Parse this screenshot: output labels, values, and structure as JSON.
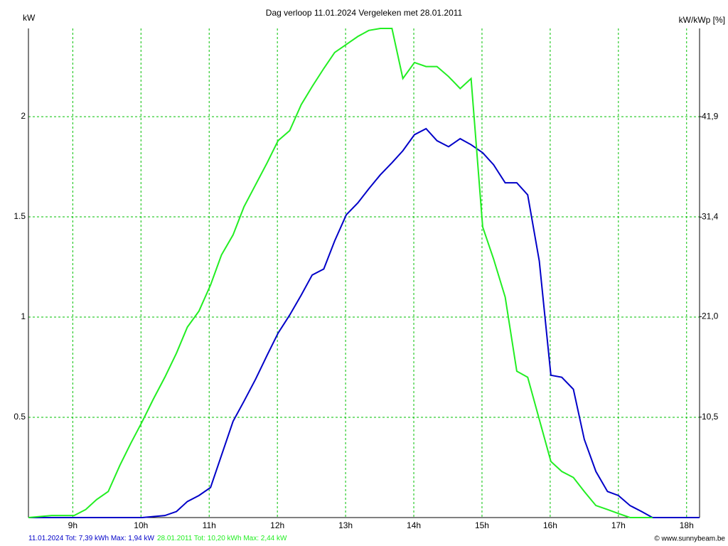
{
  "chart_data": {
    "type": "line",
    "title": "Dag  verloop 11.01.2024   Vergeleken met 28.01.2011",
    "y_label": "kW",
    "y2_label": "kW/kWp [%]",
    "footer": "© www.sunnybeam.be",
    "xlim": [
      8.35,
      18.19
    ],
    "xticks": [
      {
        "value": 9,
        "label": "9h"
      },
      {
        "value": 10,
        "label": "10h"
      },
      {
        "value": 11,
        "label": "11h"
      },
      {
        "value": 12,
        "label": "12h"
      },
      {
        "value": 13,
        "label": "13h"
      },
      {
        "value": 14,
        "label": "14h"
      },
      {
        "value": 15,
        "label": "15h"
      },
      {
        "value": 16,
        "label": "16h"
      },
      {
        "value": 17,
        "label": "17h"
      },
      {
        "value": 18,
        "label": "18h"
      }
    ],
    "ylim": [
      0,
      2.44
    ],
    "yticks": [
      0.5,
      1,
      1.5,
      2
    ],
    "y2lim": [
      0,
      51.12
    ],
    "y2ticks": [
      {
        "value": 10.5,
        "label": "10,5"
      },
      {
        "value": 21.0,
        "label": "21,0"
      },
      {
        "value": 31.4,
        "label": "31,4"
      },
      {
        "value": 41.9,
        "label": "41,9"
      }
    ],
    "grid": true,
    "grid_color": "#00c000",
    "series": [
      {
        "name": "11.01.2024 Tot: 7,39 kWh Max: 1,94 kW",
        "color": "#0000c8",
        "x": [
          8.35,
          9.52,
          10.02,
          10.35,
          10.52,
          10.68,
          10.85,
          11.02,
          11.18,
          11.35,
          11.51,
          11.68,
          11.85,
          12.01,
          12.18,
          12.35,
          12.51,
          12.68,
          12.84,
          13.01,
          13.18,
          13.34,
          13.51,
          13.68,
          13.84,
          14.01,
          14.18,
          14.34,
          14.51,
          14.68,
          14.84,
          15.01,
          15.17,
          15.34,
          15.51,
          15.67,
          15.84,
          16.01,
          16.17,
          16.34,
          16.5,
          16.67,
          16.84,
          17.0,
          17.17,
          17.34,
          17.5,
          18.19
        ],
        "values": [
          0,
          0,
          0,
          0.01,
          0.03,
          0.08,
          0.11,
          0.15,
          0.31,
          0.48,
          0.58,
          0.69,
          0.81,
          0.92,
          1.01,
          1.11,
          1.21,
          1.24,
          1.38,
          1.51,
          1.57,
          1.64,
          1.71,
          1.77,
          1.83,
          1.91,
          1.94,
          1.88,
          1.85,
          1.89,
          1.86,
          1.82,
          1.76,
          1.67,
          1.67,
          1.61,
          1.28,
          0.71,
          0.7,
          0.64,
          0.39,
          0.23,
          0.13,
          0.11,
          0.06,
          0.03,
          0,
          0
        ]
      },
      {
        "name": "28.01.2011 Tot: 10,20 kWh Max: 2,44 kW",
        "color": "#22ee22",
        "x": [
          8.35,
          8.69,
          9.02,
          9.19,
          9.35,
          9.52,
          9.69,
          9.85,
          10.02,
          10.18,
          10.35,
          10.52,
          10.68,
          10.85,
          11.02,
          11.18,
          11.35,
          11.51,
          11.68,
          11.85,
          12.01,
          12.18,
          12.35,
          12.51,
          12.68,
          12.84,
          13.01,
          13.18,
          13.34,
          13.51,
          13.68,
          13.84,
          14.01,
          14.18,
          14.34,
          14.51,
          14.68,
          14.84,
          15.01,
          15.17,
          15.34,
          15.51,
          15.67,
          15.84,
          16.01,
          16.17,
          16.34,
          16.5,
          16.67,
          16.84,
          17.0,
          17.17,
          17.5
        ],
        "values": [
          0,
          0.01,
          0.01,
          0.04,
          0.09,
          0.13,
          0.26,
          0.37,
          0.48,
          0.59,
          0.7,
          0.82,
          0.95,
          1.03,
          1.16,
          1.31,
          1.41,
          1.55,
          1.66,
          1.77,
          1.88,
          1.93,
          2.06,
          2.15,
          2.24,
          2.32,
          2.36,
          2.4,
          2.43,
          2.44,
          2.44,
          2.19,
          2.27,
          2.25,
          2.25,
          2.2,
          2.14,
          2.19,
          1.45,
          1.29,
          1.1,
          0.73,
          0.7,
          0.49,
          0.28,
          0.23,
          0.2,
          0.13,
          0.06,
          0.04,
          0.02,
          0,
          0
        ]
      }
    ]
  }
}
